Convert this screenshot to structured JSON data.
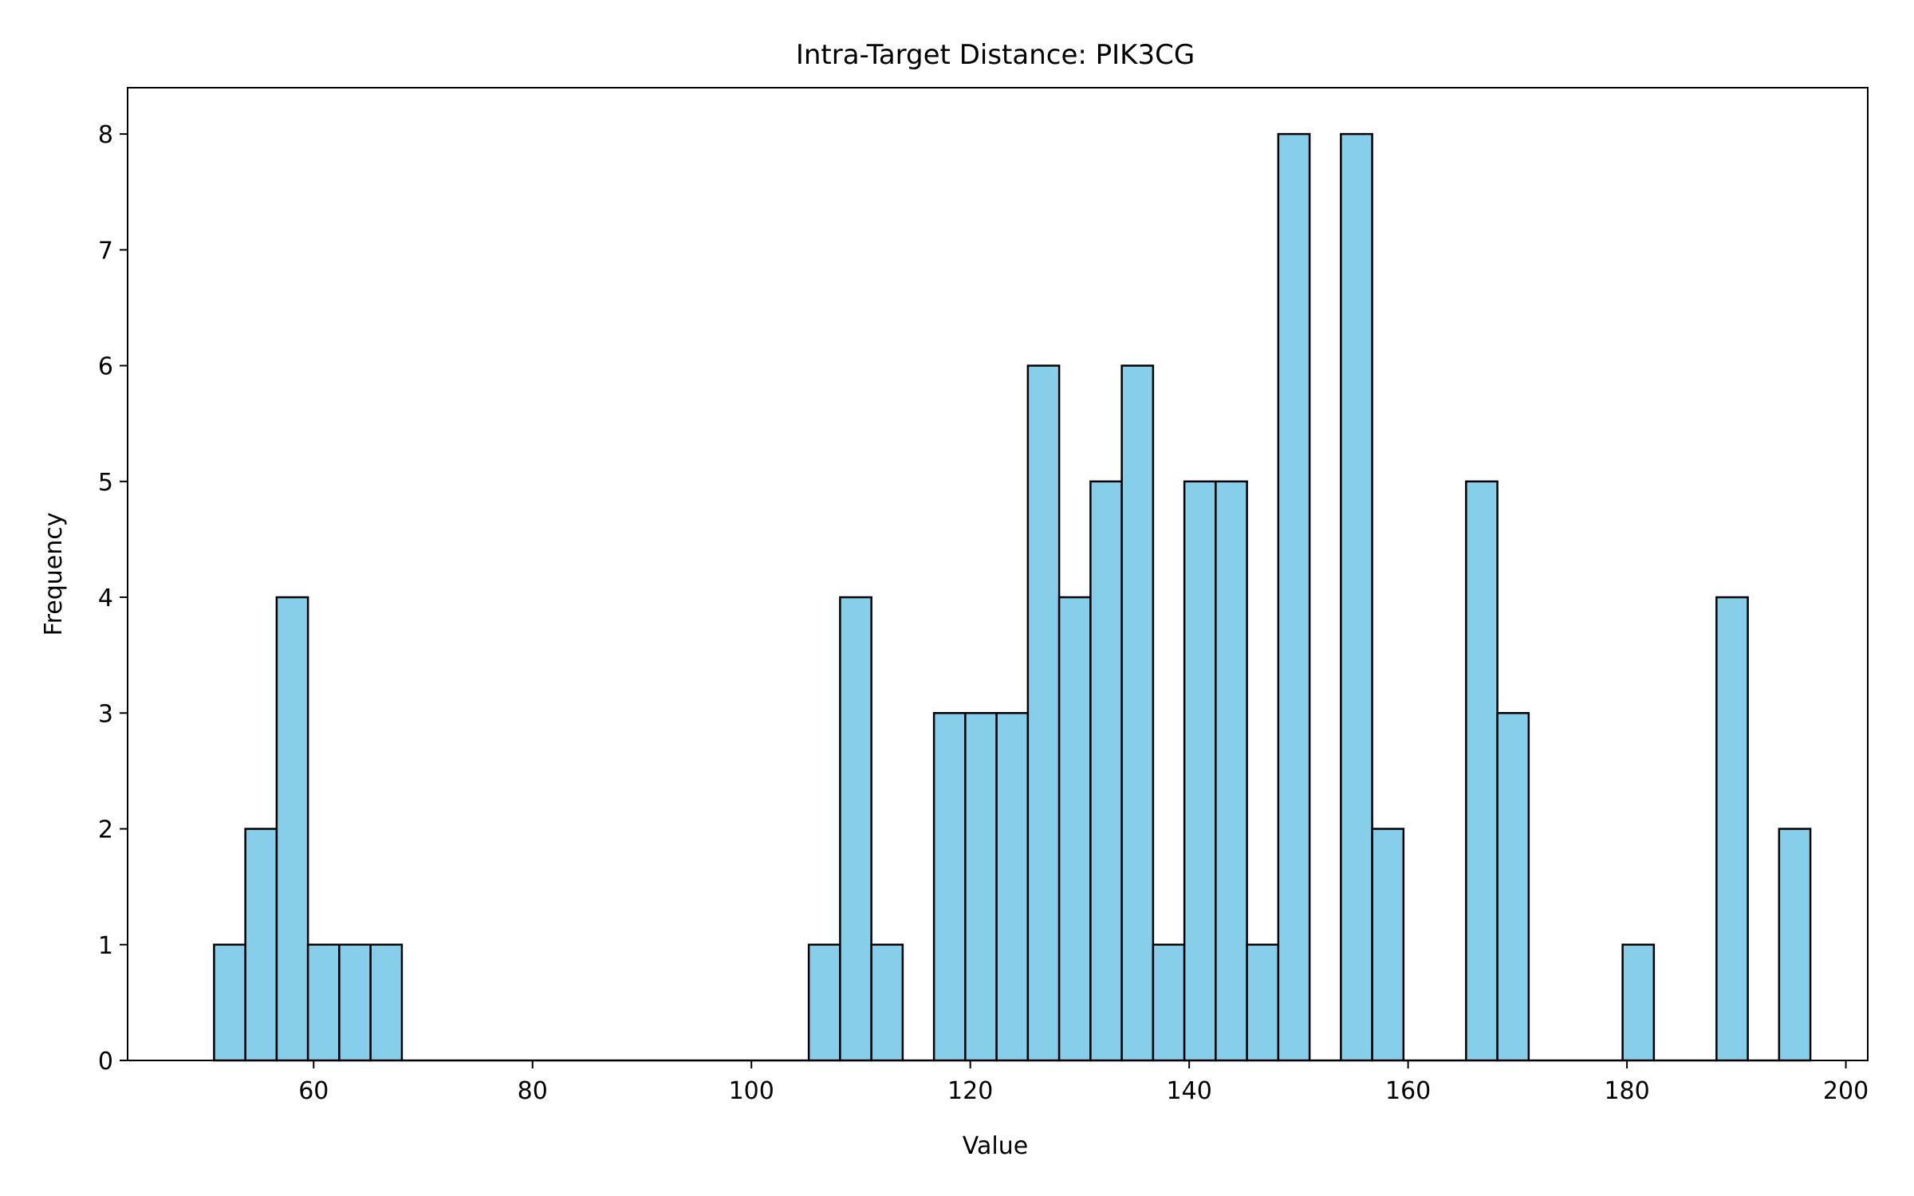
{
  "chart_data": {
    "type": "bar",
    "title": "Intra-Target Distance: PIK3CG",
    "xlabel": "Value",
    "ylabel": "Frequency",
    "xlim": [
      43,
      202
    ],
    "ylim": [
      0,
      8.4
    ],
    "grid": false,
    "xticks": [
      60,
      80,
      100,
      120,
      140,
      160,
      180,
      200
    ],
    "yticks": [
      0,
      1,
      2,
      3,
      4,
      5,
      6,
      7,
      8
    ],
    "bin_start": 50.9,
    "bin_width": 2.86,
    "values": [
      1,
      2,
      4,
      1,
      1,
      1,
      0,
      0,
      0,
      0,
      0,
      0,
      0,
      0,
      0,
      0,
      0,
      0,
      0,
      1,
      4,
      1,
      0,
      3,
      3,
      3,
      6,
      4,
      5,
      6,
      1,
      5,
      5,
      1,
      8,
      0,
      8,
      2,
      0,
      0,
      5,
      3,
      0,
      0,
      0,
      1,
      0,
      0,
      4,
      0,
      2
    ],
    "colors": {
      "bar_fill": "#87ceeb",
      "bar_edge": "#000000"
    }
  }
}
